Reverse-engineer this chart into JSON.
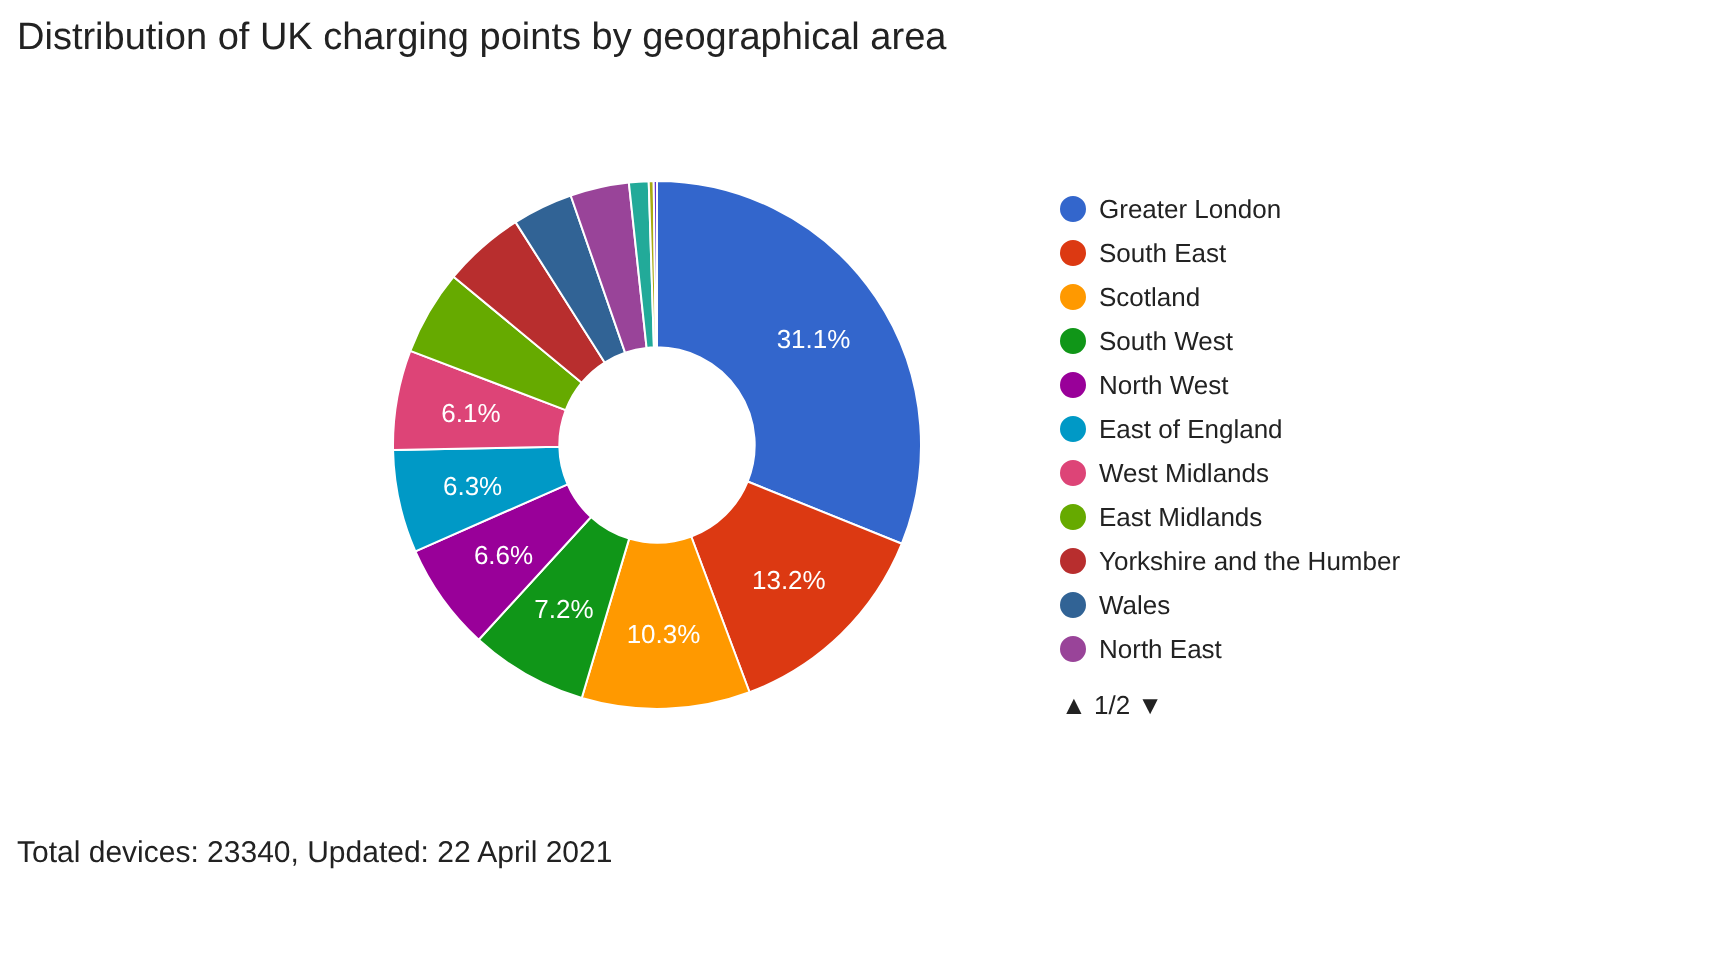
{
  "chart_data": {
    "type": "donut",
    "title": "Distribution of UK charging points by geographical area",
    "categories": [
      "Greater London",
      "South East",
      "Scotland",
      "South West",
      "North West",
      "East of England",
      "West Midlands",
      "East Midlands",
      "Yorkshire and the Humber",
      "Wales",
      "North East",
      null,
      null,
      null
    ],
    "values": [
      31.1,
      13.2,
      10.3,
      7.2,
      6.6,
      6.3,
      6.1,
      5.2,
      5.0,
      3.7,
      3.6,
      1.2,
      0.3,
      0.2
    ],
    "colors": [
      "#3366cc",
      "#dc3912",
      "#ff9900",
      "#109618",
      "#990099",
      "#0099c6",
      "#dd4477",
      "#66aa00",
      "#b82e2e",
      "#316395",
      "#994499",
      "#22aa99",
      "#aaaa11",
      "#6633cc"
    ],
    "value_labels": [
      "31.1%",
      "13.2%",
      "10.3%",
      "7.2%",
      "6.6%",
      "6.3%",
      "6.1%",
      null,
      null,
      null,
      null,
      null,
      null,
      null
    ],
    "legend": "right",
    "annotations": [
      "▲ 1/2 ▼",
      "Total devices: 23340, Updated: 22 April 2021"
    ]
  }
}
